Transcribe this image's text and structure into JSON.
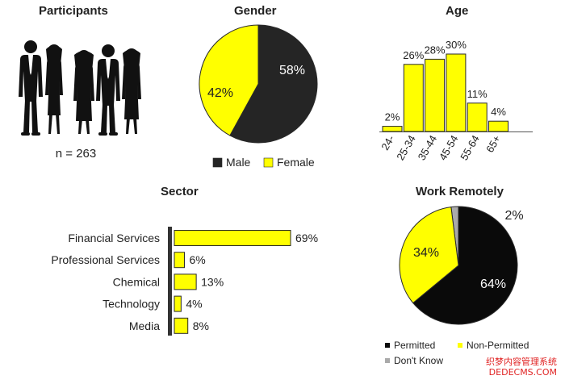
{
  "participants": {
    "title": "Participants",
    "n_label": "n = 263",
    "silhouette_color": "#111111"
  },
  "colors": {
    "yellow": "#FFFF00",
    "dark": "#252525",
    "black": "#0a0a0a",
    "grey": "#aaaaaa",
    "outline": "#2a2a2a"
  },
  "chart_data": [
    {
      "id": "gender",
      "type": "pie",
      "title": "Gender",
      "slices": [
        {
          "label": "Male",
          "value": 58,
          "value_label": "58%",
          "color": "#252525"
        },
        {
          "label": "Female",
          "value": 42,
          "value_label": "42%",
          "color": "#FFFF00"
        }
      ],
      "legend": "bottom"
    },
    {
      "id": "age",
      "type": "bar",
      "title": "Age",
      "categories": [
        "24-",
        "25-34",
        "35-44",
        "45-54",
        "55-64",
        "65+"
      ],
      "values": [
        2,
        26,
        28,
        30,
        11,
        4
      ],
      "value_labels": [
        "2%",
        "26%",
        "28%",
        "30%",
        "11%",
        "4%"
      ],
      "ylim": [
        0,
        30
      ]
    },
    {
      "id": "sector",
      "type": "bar",
      "orientation": "horizontal",
      "title": "Sector",
      "categories": [
        "Financial Services",
        "Professional Services",
        "Chemical",
        "Technology",
        "Media"
      ],
      "values": [
        69,
        6,
        13,
        4,
        8
      ],
      "value_labels": [
        "69%",
        "6%",
        "13%",
        "4%",
        "8%"
      ],
      "xlim": [
        0,
        69
      ]
    },
    {
      "id": "remote",
      "type": "pie",
      "title": "Work Remotely",
      "slices": [
        {
          "label": "Permitted",
          "value": 64,
          "value_label": "64%",
          "color": "#0a0a0a"
        },
        {
          "label": "Non-Permitted",
          "value": 34,
          "value_label": "34%",
          "color": "#FFFF00"
        },
        {
          "label": "Don't Know",
          "value": 2,
          "value_label": "2%",
          "color": "#aaaaaa"
        }
      ],
      "legend": "bottom"
    }
  ],
  "watermark": {
    "line1": "织梦内容管理系统",
    "line2": "DEDECMS.COM"
  }
}
